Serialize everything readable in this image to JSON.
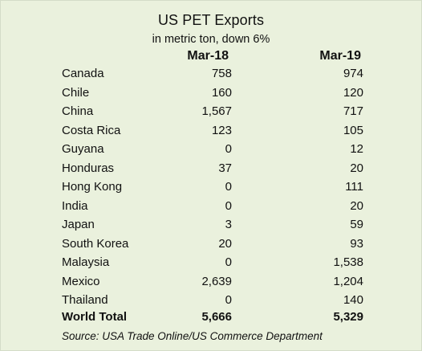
{
  "chart_data": {
    "type": "table",
    "title": "US PET Exports",
    "subtitle": "in metric ton, down 6%",
    "columns": [
      "Mar-18",
      "Mar-19"
    ],
    "rows": [
      {
        "country": "Canada",
        "values": [
          "758",
          "974"
        ]
      },
      {
        "country": "Chile",
        "values": [
          "160",
          "120"
        ]
      },
      {
        "country": "China",
        "values": [
          "1,567",
          "717"
        ]
      },
      {
        "country": "Costa Rica",
        "values": [
          "123",
          "105"
        ]
      },
      {
        "country": "Guyana",
        "values": [
          "0",
          "12"
        ]
      },
      {
        "country": "Honduras",
        "values": [
          "37",
          "20"
        ]
      },
      {
        "country": "Hong Kong",
        "values": [
          "0",
          "111"
        ]
      },
      {
        "country": "India",
        "values": [
          "0",
          "20"
        ]
      },
      {
        "country": "Japan",
        "values": [
          "3",
          "59"
        ]
      },
      {
        "country": "South Korea",
        "values": [
          "20",
          "93"
        ]
      },
      {
        "country": "Malaysia",
        "values": [
          "0",
          "1,538"
        ]
      },
      {
        "country": "Mexico",
        "values": [
          "2,639",
          "1,204"
        ]
      },
      {
        "country": "Thailand",
        "values": [
          "0",
          "140"
        ]
      }
    ],
    "total": {
      "label": "World Total",
      "values": [
        "5,666",
        "5,329"
      ]
    },
    "source": "Source: USA Trade Online/US Commerce Department",
    "background_color": "#eaf1dd"
  }
}
